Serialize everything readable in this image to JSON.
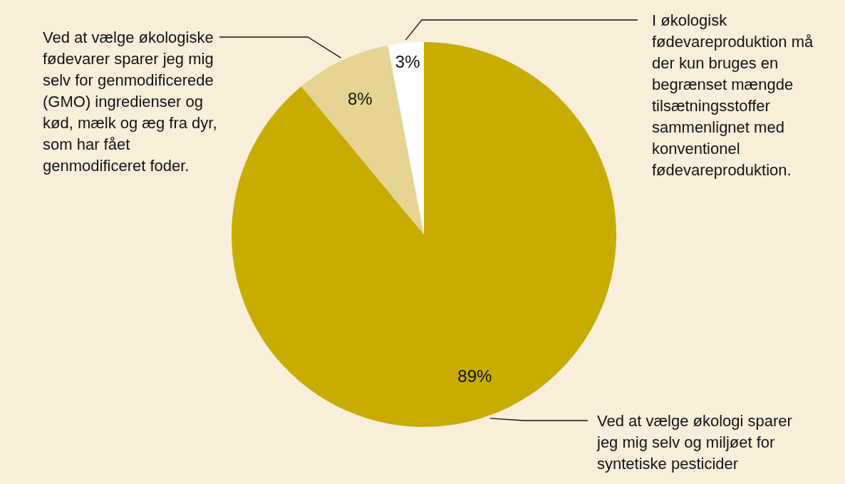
{
  "chart_data": {
    "type": "pie",
    "categories": [
      "Ved at vælge økologi sparer jeg mig selv og miljøet for syntetiske pesticider",
      "Ved at vælge økologiske fødevarer sparer jeg mig selv for genmodificerede (GMO) ingredienser og kød, mælk og æg fra dyr, som har fået genmodificeret foder.",
      "I økologisk fødevareproduktion må der kun bruges en begrænset mængde tilsætningsstoffer sammenlignet med konventionel fødevareproduktion."
    ],
    "values": [
      89,
      8,
      3
    ],
    "colors": [
      "#c8ad00",
      "#e5d491",
      "#ffffff"
    ],
    "value_labels": [
      "89%",
      "8%",
      "3%"
    ]
  }
}
